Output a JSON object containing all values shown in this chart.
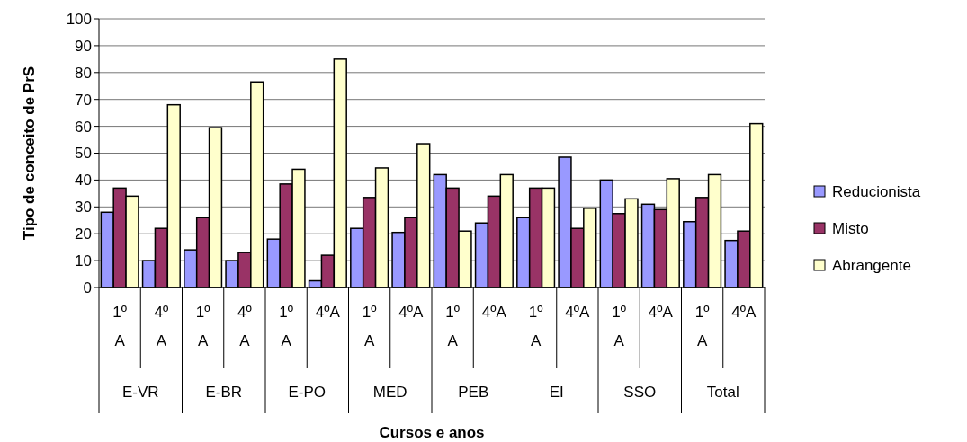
{
  "chart_data": {
    "type": "bar",
    "xlabel": "Cursos e anos",
    "ylabel": "Tipo de conceito de PrS",
    "categories": [
      "1º A",
      "4º A",
      "1º A",
      "4º A",
      "1º A",
      "4ºA",
      "1º A",
      "4ºA",
      "1º A",
      "4ºA",
      "1º A",
      "4ºA",
      "1º A",
      "4ºA",
      "1º A",
      "4ºA"
    ],
    "annotations": [
      "E-VR",
      "E-BR",
      "E-PO",
      "MED",
      "PEB",
      "EI",
      "SSO",
      "Total"
    ],
    "series": [
      {
        "name": "Reducionista",
        "color": "#9999ff",
        "values": [
          28,
          10,
          14,
          10,
          18,
          2.5,
          22,
          20.5,
          42,
          24,
          26,
          48.5,
          40,
          31,
          24.5,
          17.5
        ]
      },
      {
        "name": "Misto",
        "color": "#993366",
        "values": [
          37,
          22,
          26,
          13,
          38.5,
          12,
          33.5,
          26,
          37,
          34,
          37,
          22,
          27.5,
          29,
          33.5,
          21
        ]
      },
      {
        "name": "Abrangente",
        "color": "#ffffcc",
        "values": [
          34,
          68,
          59.5,
          76.5,
          44,
          85,
          44.5,
          53.5,
          21,
          42,
          37,
          29.5,
          33,
          40.5,
          42,
          61
        ]
      }
    ],
    "ylim": [
      0,
      100
    ],
    "yticks": [
      0,
      10,
      20,
      30,
      40,
      50,
      60,
      70,
      80,
      90,
      100
    ],
    "grid": "y",
    "legend": "right"
  }
}
